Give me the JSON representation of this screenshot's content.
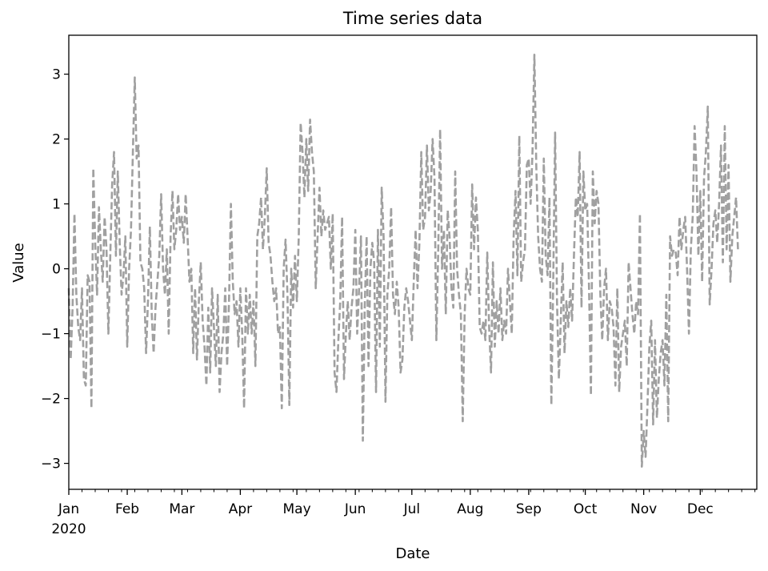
{
  "chart_data": {
    "type": "line",
    "title": "Time series data",
    "xlabel": "Date",
    "ylabel": "Value",
    "xlim": [
      "2020-01-01",
      "2020-12-31"
    ],
    "ylim": [
      -3.4,
      3.6
    ],
    "grid": false,
    "line_color": "#a0a0a0",
    "line_style": "dashed",
    "x_ticks": [
      "Jan",
      "Feb",
      "Mar",
      "Apr",
      "May",
      "Jun",
      "Jul",
      "Aug",
      "Sep",
      "Oct",
      "Nov",
      "Dec"
    ],
    "x_tick_dates": [
      "2020-01-01",
      "2020-02-01",
      "2020-03-01",
      "2020-04-01",
      "2020-05-01",
      "2020-06-01",
      "2020-07-01",
      "2020-08-01",
      "2020-09-01",
      "2020-10-01",
      "2020-11-01",
      "2020-12-01"
    ],
    "x_year_label": "2020",
    "y_ticks": [
      -3,
      -2,
      -1,
      0,
      1,
      2,
      3
    ],
    "series": [
      {
        "start": "2020-01-01",
        "frequency": "daily",
        "values": [
          -0.3,
          -1.4,
          -0.6,
          0.85,
          -0.4,
          -0.9,
          -1.1,
          -0.3,
          -1.7,
          -1.8,
          -0.1,
          -0.2,
          -2.15,
          1.55,
          0.4,
          -0.4,
          0.95,
          0.3,
          -0.2,
          0.8,
          0.3,
          -1.0,
          0.2,
          1.3,
          1.8,
          0.2,
          1.5,
          0.4,
          -0.4,
          -0.1,
          0.5,
          -1.2,
          0.0,
          0.6,
          1.8,
          2.95,
          1.7,
          1.9,
          0.1,
          0.0,
          -0.3,
          -1.3,
          -0.5,
          0.65,
          -0.7,
          -1.3,
          -0.6,
          -0.2,
          0.2,
          1.15,
          0.0,
          -0.4,
          0.3,
          -1.0,
          0.5,
          1.2,
          0.3,
          0.6,
          1.15,
          0.6,
          0.8,
          0.4,
          1.15,
          0.5,
          -0.2,
          0.0,
          -1.3,
          -0.3,
          -1.4,
          -0.5,
          0.1,
          -0.8,
          -1.2,
          -1.8,
          -0.6,
          -1.6,
          -0.3,
          -0.9,
          -1.5,
          -0.4,
          -1.9,
          -1.3,
          -1.0,
          -0.3,
          -1.5,
          -0.5,
          1.0,
          -0.2,
          -0.7,
          -0.5,
          -1.2,
          -0.3,
          -1.0,
          -2.15,
          -0.3,
          -1.0,
          -0.4,
          -1.0,
          -0.5,
          -1.5,
          0.5,
          0.7,
          1.1,
          0.3,
          0.8,
          1.55,
          0.4,
          0.2,
          -0.2,
          -0.5,
          -0.3,
          -1.0,
          -0.9,
          -2.15,
          0.0,
          0.45,
          -0.4,
          -2.1,
          0.0,
          -0.6,
          0.2,
          -0.5,
          0.5,
          2.25,
          1.8,
          1.1,
          2.0,
          1.2,
          2.3,
          1.8,
          1.5,
          -0.3,
          0.5,
          1.25,
          0.5,
          0.9,
          0.6,
          0.7,
          0.8,
          0.0,
          0.85,
          -1.6,
          -1.9,
          -1.1,
          -0.5,
          0.8,
          -1.7,
          -1.0,
          -0.5,
          -1.1,
          -0.6,
          -0.3,
          0.6,
          -1.0,
          -0.3,
          0.5,
          -2.65,
          -0.6,
          0.5,
          -1.5,
          0.0,
          0.4,
          0.1,
          -1.9,
          0.6,
          -1.2,
          1.25,
          0.5,
          -2.05,
          -0.4,
          0.0,
          0.95,
          -0.4,
          -0.7,
          -0.2,
          -0.6,
          -1.6,
          -1.4,
          -0.6,
          -0.3,
          -0.5,
          -0.8,
          -1.1,
          -0.2,
          0.6,
          -0.3,
          0.4,
          1.8,
          0.6,
          0.8,
          1.9,
          0.9,
          1.2,
          2.0,
          1.4,
          -1.1,
          0.3,
          2.15,
          0.0,
          0.6,
          -0.7,
          0.9,
          0.5,
          -0.3,
          -0.6,
          1.5,
          0.0,
          -0.4,
          -0.7,
          -2.35,
          -0.7,
          0.0,
          -0.3,
          -0.4,
          1.3,
          0.3,
          1.1,
          0.6,
          -0.9,
          -1.0,
          -0.8,
          -1.1,
          0.25,
          -0.9,
          -1.6,
          0.1,
          -1.2,
          -0.5,
          -1.0,
          -0.3,
          -1.1,
          -0.8,
          -1.0,
          0.0,
          -0.5,
          -1.0,
          0.5,
          1.2,
          -0.1,
          2.05,
          -0.2,
          0.1,
          0.3,
          1.6,
          1.7,
          1.0,
          1.8,
          3.3,
          1.6,
          0.5,
          0.0,
          -0.2,
          1.7,
          0.2,
          -0.1,
          1.1,
          -2.1,
          -0.2,
          2.1,
          -0.5,
          -1.7,
          -0.8,
          0.1,
          -1.3,
          -0.5,
          -0.9,
          -0.3,
          -0.8,
          0.2,
          1.1,
          0.8,
          1.8,
          -0.6,
          1.5,
          0.9,
          1.0,
          -0.3,
          -1.95,
          1.5,
          0.7,
          1.2,
          1.0,
          -0.4,
          -1.1,
          -0.3,
          0.0,
          -1.1,
          -0.5,
          -0.6,
          -0.9,
          -1.8,
          -0.3,
          -1.9,
          -1.2,
          -1.0,
          -0.8,
          -1.5,
          0.1,
          -0.3,
          -0.7,
          -1.0,
          -0.5,
          -0.7,
          0.85,
          -3.05,
          -2.5,
          -2.9,
          -2.1,
          -1.2,
          -0.8,
          -2.4,
          -1.1,
          -2.3,
          -1.7,
          -1.3,
          -1.1,
          -1.8,
          -0.4,
          -2.35,
          0.5,
          0.2,
          0.3,
          0.25,
          -0.1,
          0.8,
          0.3,
          0.6,
          0.8,
          0.0,
          -1.0,
          0.3,
          0.8,
          2.2,
          1.5,
          0.2,
          1.2,
          -0.2,
          1.4,
          1.8,
          2.5,
          -0.55,
          0.0,
          0.7,
          0.9,
          0.4,
          1.0,
          1.9,
          0.1,
          2.2,
          0.3,
          1.6,
          -0.2,
          0.5,
          0.8,
          1.1,
          0.3
        ]
      }
    ]
  }
}
